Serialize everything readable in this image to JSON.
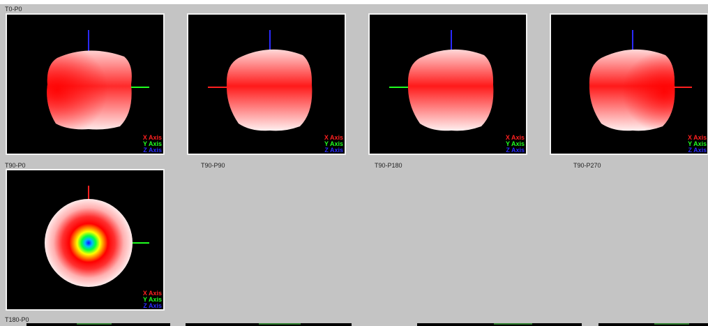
{
  "captions": {
    "row0_top": "T0-P0",
    "row1_top": "T90-P0",
    "t90_p90": "T90-P90",
    "t90_p180": "T90-P180",
    "t90_p270": "T90-P270",
    "row2_top": "T180-P0"
  },
  "legend": {
    "x_label": "X Axis",
    "y_label": "Y Axis",
    "z_label": "Z Axis"
  },
  "colors": {
    "x_axis": "#ff2020",
    "y_axis": "#20ff20",
    "z_axis": "#2a2aff",
    "pattern_red": "#ff1a1a",
    "background": "#c4c4c4",
    "viewport": "#000000"
  }
}
